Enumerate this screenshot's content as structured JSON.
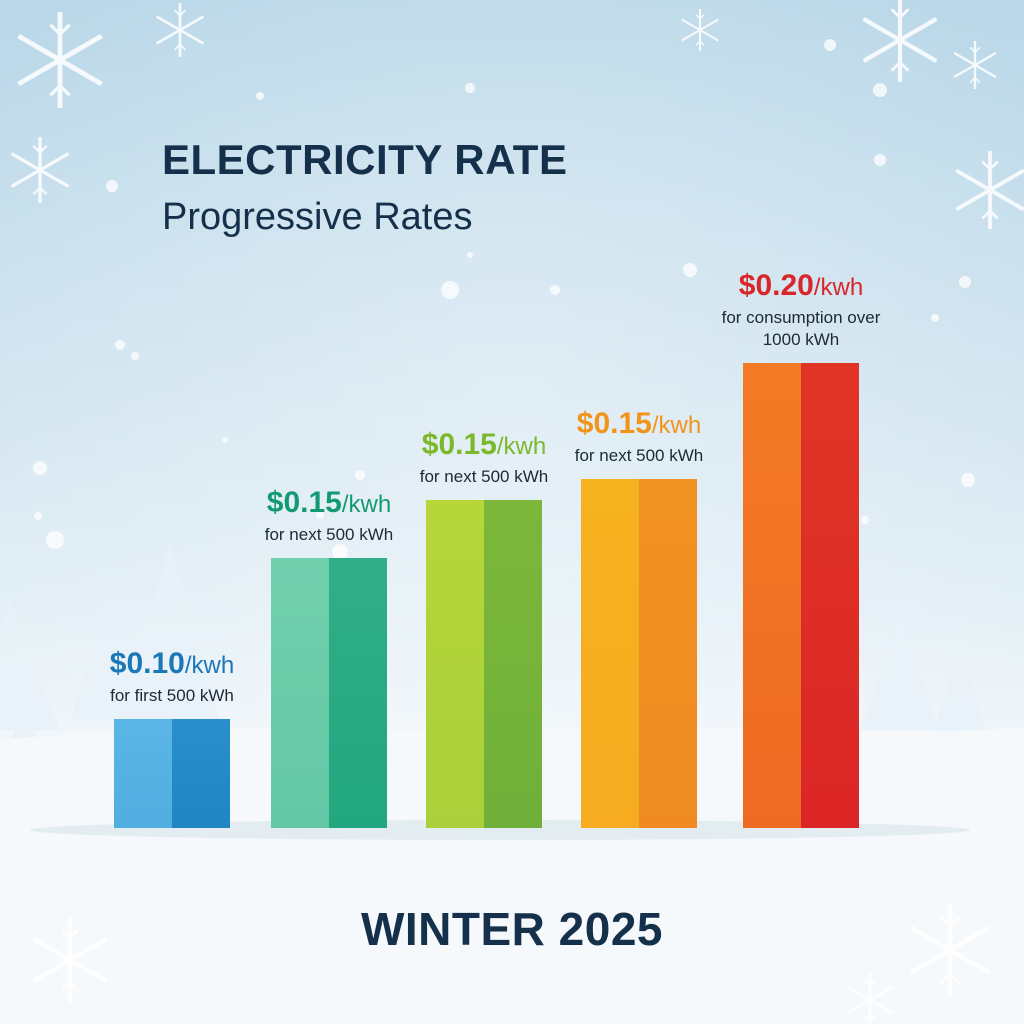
{
  "header": {
    "title": "ELECTRICITY RATE",
    "subtitle": "Progressive Rates"
  },
  "footer": {
    "text": "WINTER 2025"
  },
  "chart_data": {
    "type": "bar",
    "title": "ELECTRICITY RATE",
    "subtitle": "Progressive Rates",
    "xlabel": "",
    "ylabel": "",
    "ylim": [
      0,
      0.2
    ],
    "grid": false,
    "categories": [
      "for first 500 kWh",
      "for next 500 kWh",
      "for next 500 kWh",
      "for next 500 kWh",
      "for consumption over 1000 kWh"
    ],
    "values": [
      0.1,
      0.15,
      0.15,
      0.15,
      0.2
    ],
    "bars": [
      {
        "price": "$0.10",
        "unit": "/kwh",
        "desc": "for first 500 kWh",
        "color_light": "#5bb6e6",
        "color_dark": "#1f86c4",
        "label_color": "#1a78b8"
      },
      {
        "price": "$0.15",
        "unit": "/kwh",
        "desc": "for next 500 kWh",
        "color_light": "#72cfae",
        "color_dark": "#22a77f",
        "label_color": "#149a72"
      },
      {
        "price": "$0.15",
        "unit": "/kwh",
        "desc": "for next 500 kWh",
        "color_light": "#b7d63a",
        "color_dark": "#6fb03a",
        "label_color": "#7bb82a"
      },
      {
        "price": "$0.15",
        "unit": "/kwh",
        "desc": "for next 500 kWh",
        "color_light": "#f7b21f",
        "color_dark": "#ef8b22",
        "label_color": "#f2941a"
      },
      {
        "price": "$0.20",
        "unit": "/kwh",
        "desc": "for consumption over 1000 kWh",
        "color_light": "#f37a24",
        "color_dark": "#dc2626",
        "label_color": "#d8262a"
      }
    ]
  }
}
